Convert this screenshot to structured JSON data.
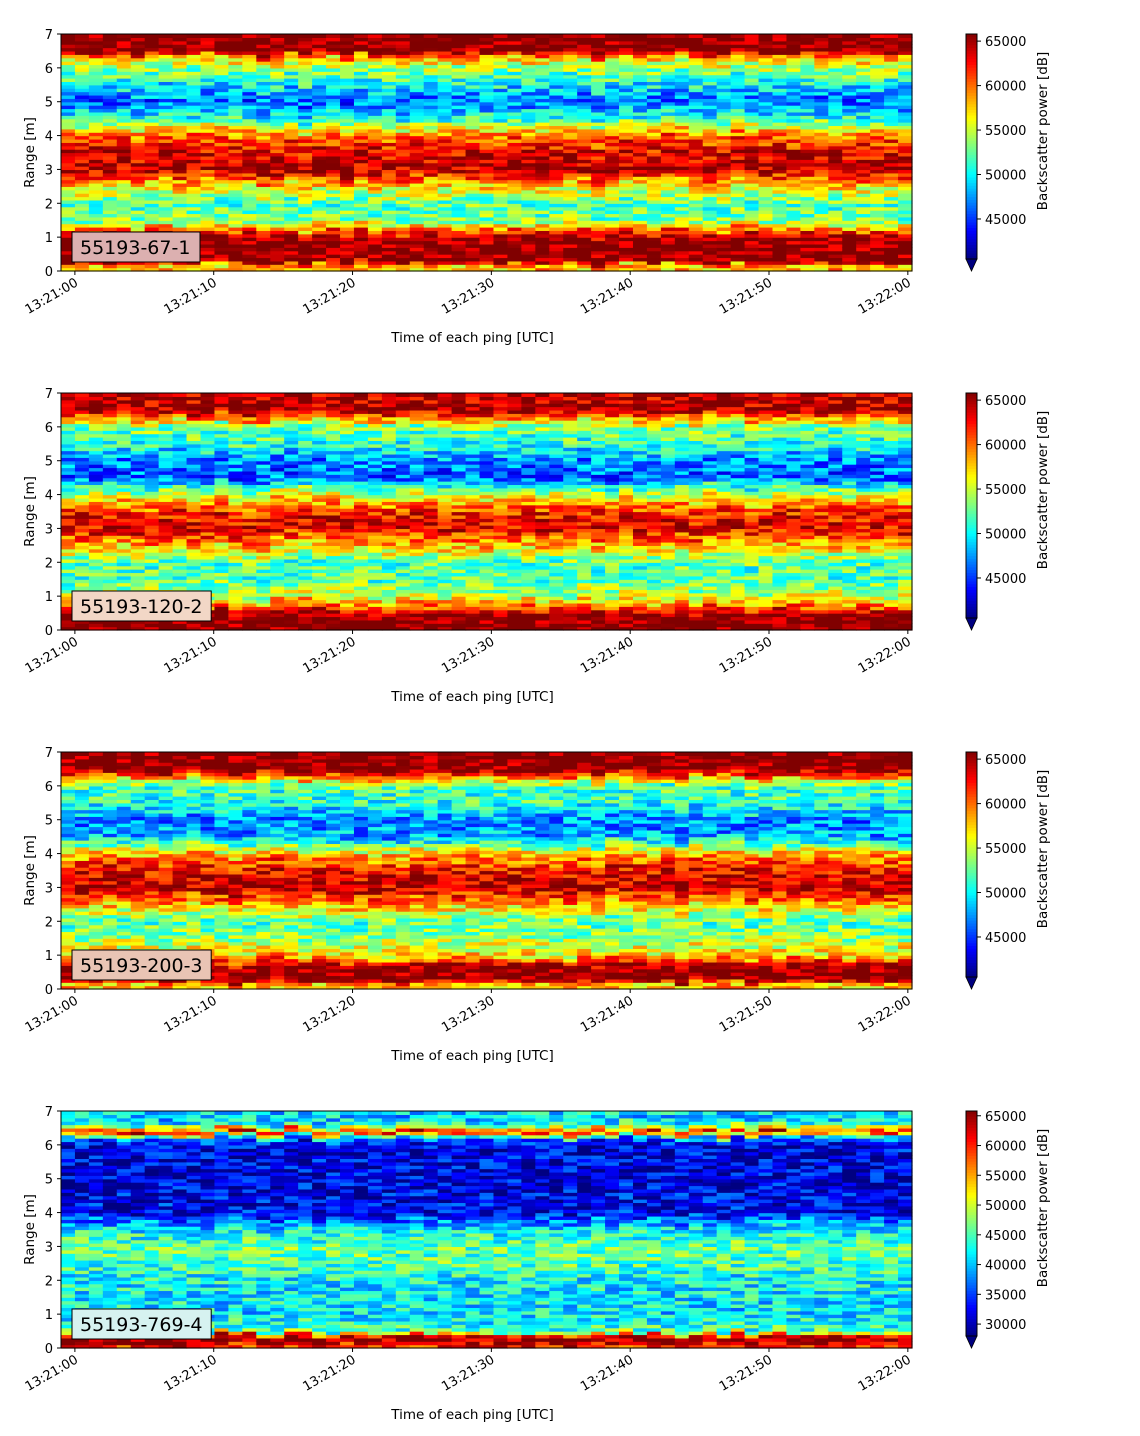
{
  "figure": {
    "colormap": "jet",
    "panels": [
      {
        "label": "55193-67-1",
        "label_bg": "#dcb0b0",
        "xlabel": "Time of each ping [UTC]",
        "ylabel": "Range [m]",
        "colorbar_label": "Backscatter power [dB]"
      },
      {
        "label": "55193-120-2",
        "label_bg": "#f2d7c6",
        "xlabel": "Time of each ping [UTC]",
        "ylabel": "Range [m]",
        "colorbar_label": "Backscatter power [dB]"
      },
      {
        "label": "55193-200-3",
        "label_bg": "#e9c4b4",
        "xlabel": "Time of each ping [UTC]",
        "ylabel": "Range [m]",
        "colorbar_label": "Backscatter power [dB]"
      },
      {
        "label": "55193-769-4",
        "label_bg": "#d6f2f0",
        "xlabel": "Time of each ping [UTC]",
        "ylabel": "Range [m]",
        "colorbar_label": "Backscatter power [dB]"
      }
    ]
  },
  "chart_data": [
    {
      "type": "heatmap",
      "label": "55193-67-1",
      "xlabel": "Time of each ping [UTC]",
      "ylabel": "Range [m]",
      "colorbar_label": "Backscatter power [dB]",
      "x_ticks": [
        "13:21:00",
        "13:21:10",
        "13:21:20",
        "13:21:30",
        "13:21:40",
        "13:21:50",
        "13:22:00"
      ],
      "x_tick_seconds": [
        0,
        10,
        20,
        30,
        40,
        50,
        60
      ],
      "xlim_seconds": [
        -1,
        60.3
      ],
      "ylim": [
        0,
        7
      ],
      "y_ticks": [
        0,
        1,
        2,
        3,
        4,
        5,
        6,
        7
      ],
      "clim": [
        40500,
        65800
      ],
      "colorbar_ticks": [
        45000,
        50000,
        55000,
        60000,
        65000
      ],
      "colorbar_extend": "min",
      "range_profile": [
        {
          "range": 0.15,
          "value": 58000
        },
        {
          "range": 0.3,
          "value": 66000
        },
        {
          "range": 1.0,
          "value": 65500
        },
        {
          "range": 1.2,
          "value": 60000
        },
        {
          "range": 1.5,
          "value": 53000
        },
        {
          "range": 2.0,
          "value": 52000
        },
        {
          "range": 2.5,
          "value": 57000
        },
        {
          "range": 3.0,
          "value": 64500
        },
        {
          "range": 3.5,
          "value": 63500
        },
        {
          "range": 4.0,
          "value": 60000
        },
        {
          "range": 4.5,
          "value": 51000
        },
        {
          "range": 5.0,
          "value": 46000
        },
        {
          "range": 5.5,
          "value": 50000
        },
        {
          "range": 6.0,
          "value": 54000
        },
        {
          "range": 6.3,
          "value": 58000
        },
        {
          "range": 6.5,
          "value": 66000
        },
        {
          "range": 7.0,
          "value": 66000
        }
      ]
    },
    {
      "type": "heatmap",
      "label": "55193-120-2",
      "xlabel": "Time of each ping [UTC]",
      "ylabel": "Range [m]",
      "colorbar_label": "Backscatter power [dB]",
      "x_ticks": [
        "13:21:00",
        "13:21:10",
        "13:21:20",
        "13:21:30",
        "13:21:40",
        "13:21:50",
        "13:22:00"
      ],
      "x_tick_seconds": [
        0,
        10,
        20,
        30,
        40,
        50,
        60
      ],
      "xlim_seconds": [
        -1,
        60.3
      ],
      "ylim": [
        0,
        7
      ],
      "y_ticks": [
        0,
        1,
        2,
        3,
        4,
        5,
        6,
        7
      ],
      "clim": [
        40500,
        65800
      ],
      "colorbar_ticks": [
        45000,
        50000,
        55000,
        60000,
        65000
      ],
      "colorbar_extend": "min",
      "range_profile": [
        {
          "range": 0.1,
          "value": 66000
        },
        {
          "range": 0.45,
          "value": 66000
        },
        {
          "range": 0.7,
          "value": 60000
        },
        {
          "range": 1.0,
          "value": 55000
        },
        {
          "range": 1.5,
          "value": 52000
        },
        {
          "range": 2.0,
          "value": 52000
        },
        {
          "range": 2.5,
          "value": 58000
        },
        {
          "range": 3.0,
          "value": 63500
        },
        {
          "range": 3.5,
          "value": 62000
        },
        {
          "range": 4.0,
          "value": 55000
        },
        {
          "range": 4.5,
          "value": 46000
        },
        {
          "range": 5.0,
          "value": 47000
        },
        {
          "range": 5.5,
          "value": 51000
        },
        {
          "range": 6.0,
          "value": 53000
        },
        {
          "range": 6.3,
          "value": 60000
        },
        {
          "range": 6.5,
          "value": 65000
        },
        {
          "range": 7.0,
          "value": 64000
        }
      ]
    },
    {
      "type": "heatmap",
      "label": "55193-200-3",
      "xlabel": "Time of each ping [UTC]",
      "ylabel": "Range [m]",
      "colorbar_label": "Backscatter power [dB]",
      "x_ticks": [
        "13:21:00",
        "13:21:10",
        "13:21:20",
        "13:21:30",
        "13:21:40",
        "13:21:50",
        "13:22:00"
      ],
      "x_tick_seconds": [
        0,
        10,
        20,
        30,
        40,
        50,
        60
      ],
      "xlim_seconds": [
        -1,
        60.3
      ],
      "ylim": [
        0,
        7
      ],
      "y_ticks": [
        0,
        1,
        2,
        3,
        4,
        5,
        6,
        7
      ],
      "clim": [
        40500,
        65800
      ],
      "colorbar_ticks": [
        45000,
        50000,
        55000,
        60000,
        65000
      ],
      "colorbar_extend": "min",
      "range_profile": [
        {
          "range": 0.15,
          "value": 58000
        },
        {
          "range": 0.3,
          "value": 66000
        },
        {
          "range": 0.7,
          "value": 65500
        },
        {
          "range": 1.0,
          "value": 57000
        },
        {
          "range": 1.5,
          "value": 54000
        },
        {
          "range": 2.0,
          "value": 52000
        },
        {
          "range": 2.5,
          "value": 58000
        },
        {
          "range": 3.0,
          "value": 64500
        },
        {
          "range": 3.5,
          "value": 63000
        },
        {
          "range": 4.0,
          "value": 58000
        },
        {
          "range": 4.5,
          "value": 48000
        },
        {
          "range": 5.0,
          "value": 47000
        },
        {
          "range": 5.5,
          "value": 51000
        },
        {
          "range": 6.0,
          "value": 52000
        },
        {
          "range": 6.3,
          "value": 60000
        },
        {
          "range": 6.5,
          "value": 66000
        },
        {
          "range": 7.0,
          "value": 66000
        }
      ]
    },
    {
      "type": "heatmap",
      "label": "55193-769-4",
      "xlabel": "Time of each ping [UTC]",
      "ylabel": "Range [m]",
      "colorbar_label": "Backscatter power [dB]",
      "x_ticks": [
        "13:21:00",
        "13:21:10",
        "13:21:20",
        "13:21:30",
        "13:21:40",
        "13:21:50",
        "13:22:00"
      ],
      "x_tick_seconds": [
        0,
        10,
        20,
        30,
        40,
        50,
        60
      ],
      "xlim_seconds": [
        -1,
        60.3
      ],
      "ylim": [
        0,
        7
      ],
      "y_ticks": [
        0,
        1,
        2,
        3,
        4,
        5,
        6,
        7
      ],
      "clim": [
        28000,
        65800
      ],
      "colorbar_ticks": [
        30000,
        35000,
        40000,
        45000,
        50000,
        55000,
        60000,
        65000
      ],
      "colorbar_extend": "min",
      "range_profile": [
        {
          "range": 0.1,
          "value": 60000
        },
        {
          "range": 0.2,
          "value": 66000
        },
        {
          "range": 0.35,
          "value": 64000
        },
        {
          "range": 0.5,
          "value": 45000
        },
        {
          "range": 1.0,
          "value": 41000
        },
        {
          "range": 1.5,
          "value": 42000
        },
        {
          "range": 2.0,
          "value": 42000
        },
        {
          "range": 2.5,
          "value": 45000
        },
        {
          "range": 3.0,
          "value": 46000
        },
        {
          "range": 3.5,
          "value": 42000
        },
        {
          "range": 4.0,
          "value": 33000
        },
        {
          "range": 5.0,
          "value": 31500
        },
        {
          "range": 6.0,
          "value": 32000
        },
        {
          "range": 6.2,
          "value": 37000
        },
        {
          "range": 6.4,
          "value": 62000
        },
        {
          "range": 6.6,
          "value": 44000
        },
        {
          "range": 6.8,
          "value": 40000
        },
        {
          "range": 7.0,
          "value": 41000
        }
      ]
    }
  ]
}
